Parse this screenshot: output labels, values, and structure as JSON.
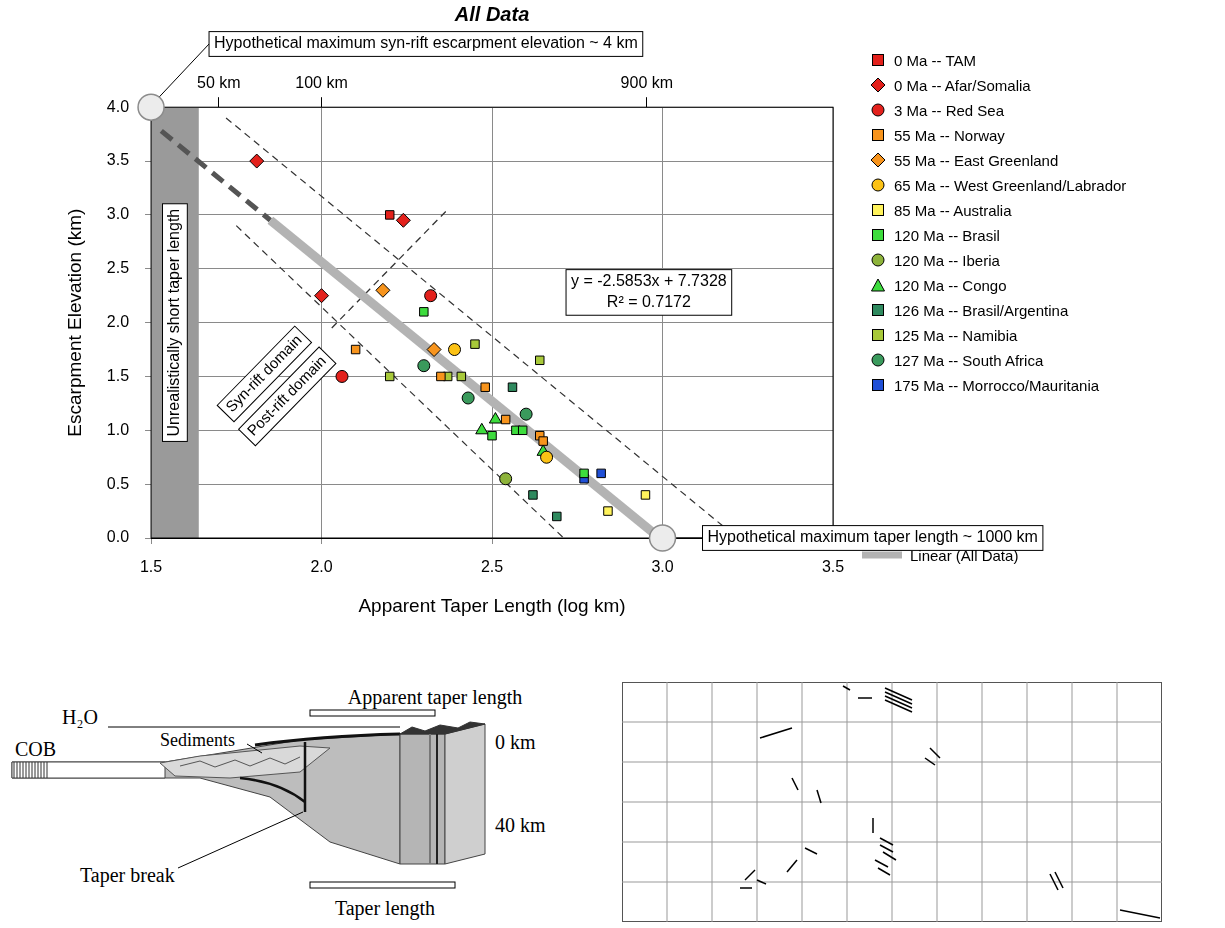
{
  "chart_data": {
    "type": "scatter",
    "title": "All Data",
    "x_label": "Apparent Taper Length (log km)",
    "y_label": "Escarpment Elevation (km)",
    "xlim": [
      1.5,
      3.5
    ],
    "xticks": [
      {
        "value": 1.5,
        "label": "1.5"
      },
      {
        "value": 2,
        "label": "2.0"
      },
      {
        "value": 2.5,
        "label": "2.5"
      },
      {
        "value": 3,
        "label": "3.0"
      },
      {
        "value": 3.5,
        "label": "3.5"
      }
    ],
    "x2lim": [
      1.5,
      3.5
    ],
    "x2ticks": [
      {
        "value": 1.699,
        "label": "50 km"
      },
      {
        "value": 2,
        "label": "100 km"
      },
      {
        "value": 2.954,
        "label": "900 km"
      }
    ],
    "ylim": [
      0,
      4
    ],
    "yticks": [
      {
        "value": 0,
        "label": "0.0"
      },
      {
        "value": 0.5,
        "label": "0.5"
      },
      {
        "value": 1,
        "label": "1.0"
      },
      {
        "value": 1.5,
        "label": "1.5"
      },
      {
        "value": 2,
        "label": "2.0"
      },
      {
        "value": 2.5,
        "label": "2.5"
      },
      {
        "value": 3,
        "label": "3.0"
      },
      {
        "value": 3.5,
        "label": "3.5"
      },
      {
        "value": 4,
        "label": "4.0"
      }
    ],
    "grid": true,
    "legend": "right",
    "series": [
      {
        "name": "0 Ma -- TAM",
        "color": "#e3211c",
        "marker": "square",
        "x": [
          2.2
        ],
        "values": [
          3.0
        ]
      },
      {
        "name": "0 Ma -- Afar/Somalia",
        "color": "#e3211c",
        "marker": "diamond",
        "x": [
          1.81,
          2.24,
          2.0
        ],
        "values": [
          3.5,
          2.95,
          2.25
        ]
      },
      {
        "name": "3 Ma -- Red Sea",
        "color": "#e3211c",
        "marker": "circle",
        "x": [
          2.32,
          2.06
        ],
        "values": [
          2.25,
          1.5
        ]
      },
      {
        "name": "55 Ma -- Norway",
        "color": "#f7941d",
        "marker": "square",
        "x": [
          2.1,
          2.35,
          2.48,
          2.54,
          2.64,
          2.65
        ],
        "values": [
          1.75,
          1.5,
          1.4,
          1.1,
          0.95,
          0.9
        ]
      },
      {
        "name": "55 Ma -- East Greenland",
        "color": "#f7941d",
        "marker": "diamond",
        "x": [
          2.18,
          2.33
        ],
        "values": [
          2.3,
          1.75
        ]
      },
      {
        "name": "65 Ma -- West Greenland/Labrador",
        "color": "#fcc215",
        "marker": "circle",
        "x": [
          2.39,
          2.66
        ],
        "values": [
          1.75,
          0.75
        ]
      },
      {
        "name": "85 Ma -- Australia",
        "color": "#fff35c",
        "marker": "square",
        "x": [
          2.95,
          2.84
        ],
        "values": [
          0.4,
          0.25
        ]
      },
      {
        "name": "120 Ma -- Brasil",
        "color": "#3ddc3d",
        "marker": "square",
        "x": [
          2.3,
          2.5,
          2.57,
          2.59,
          2.77
        ],
        "values": [
          2.1,
          0.95,
          1.0,
          1.0,
          0.6
        ]
      },
      {
        "name": "120 Ma -- Iberia",
        "color": "#8db33a",
        "marker": "circle",
        "x": [
          2.54
        ],
        "values": [
          0.55
        ]
      },
      {
        "name": "120 Ma -- Congo",
        "color": "#3ddc3d",
        "marker": "triangle",
        "x": [
          2.47,
          2.51,
          2.65
        ],
        "values": [
          1.0,
          1.1,
          0.8
        ]
      },
      {
        "name": "126 Ma -- Brasil/Argentina",
        "color": "#2f8a5f",
        "marker": "square",
        "x": [
          2.56,
          2.62,
          2.69
        ],
        "values": [
          1.4,
          0.4,
          0.2
        ]
      },
      {
        "name": "125 Ma -- Namibia",
        "color": "#a8c93a",
        "marker": "square",
        "x": [
          2.2,
          2.37,
          2.41,
          2.45,
          2.64
        ],
        "values": [
          1.5,
          1.5,
          1.5,
          1.8,
          1.65
        ]
      },
      {
        "name": "127 Ma -- South Africa",
        "color": "#3a9a5c",
        "marker": "circle",
        "x": [
          2.3,
          2.43,
          2.6
        ],
        "values": [
          1.6,
          1.3,
          1.15
        ]
      },
      {
        "name": "175 Ma -- Morrocco/Mauritania",
        "color": "#1f4fd6",
        "marker": "square",
        "x": [
          2.77,
          2.82
        ],
        "values": [
          0.55,
          0.6
        ]
      }
    ],
    "trend_line": {
      "name": "Linear (All Data)",
      "color": "#b3b3b3",
      "line_style": "solid",
      "x": [
        1.85,
        2.98
      ],
      "values": [
        2.95,
        0.03
      ]
    },
    "trend_extension": {
      "color": "#555555",
      "line_style": "dashed",
      "x": [
        1.53,
        1.85
      ],
      "values": [
        3.78,
        2.95
      ]
    },
    "envelope_lines": [
      {
        "color": "#333333",
        "line_style": "dashed",
        "x": [
          1.72,
          3.22
        ],
        "values": [
          3.9,
          0.0
        ]
      },
      {
        "color": "#333333",
        "line_style": "dashed",
        "x": [
          1.75,
          2.71
        ],
        "values": [
          2.9,
          0.0
        ]
      }
    ],
    "domain_boundary": {
      "color": "#333333",
      "line_style": "dashed",
      "x": [
        2.03,
        2.37
      ],
      "values": [
        1.95,
        3.05
      ],
      "labels": [
        "Syn-rift domain",
        "Post-rift domain"
      ]
    },
    "shaded_region": {
      "label": "Unrealistically short taper length",
      "x": [
        1.5,
        1.64
      ]
    },
    "callouts": [
      {
        "label": "Hypothetical maximum syn-rift escarpment elevation ~ 4 km",
        "x": 1.5,
        "y": 4.0
      },
      {
        "label": "Hypothetical maximum taper length ~ 1000 km",
        "x": 3.0,
        "y": 0.0
      }
    ],
    "equation": "y = -2.5853x + 7.7328",
    "r_squared": "R² = 0.7172"
  },
  "diagram": {
    "labels": {
      "apparent_taper_length": "Apparent taper length",
      "cob": "COB",
      "water": "H₂O",
      "sediments": "Sediments",
      "depth_top": "0 km",
      "depth_bottom": "40 km",
      "taper_break": "Taper break",
      "taper_length": "Taper length"
    }
  }
}
